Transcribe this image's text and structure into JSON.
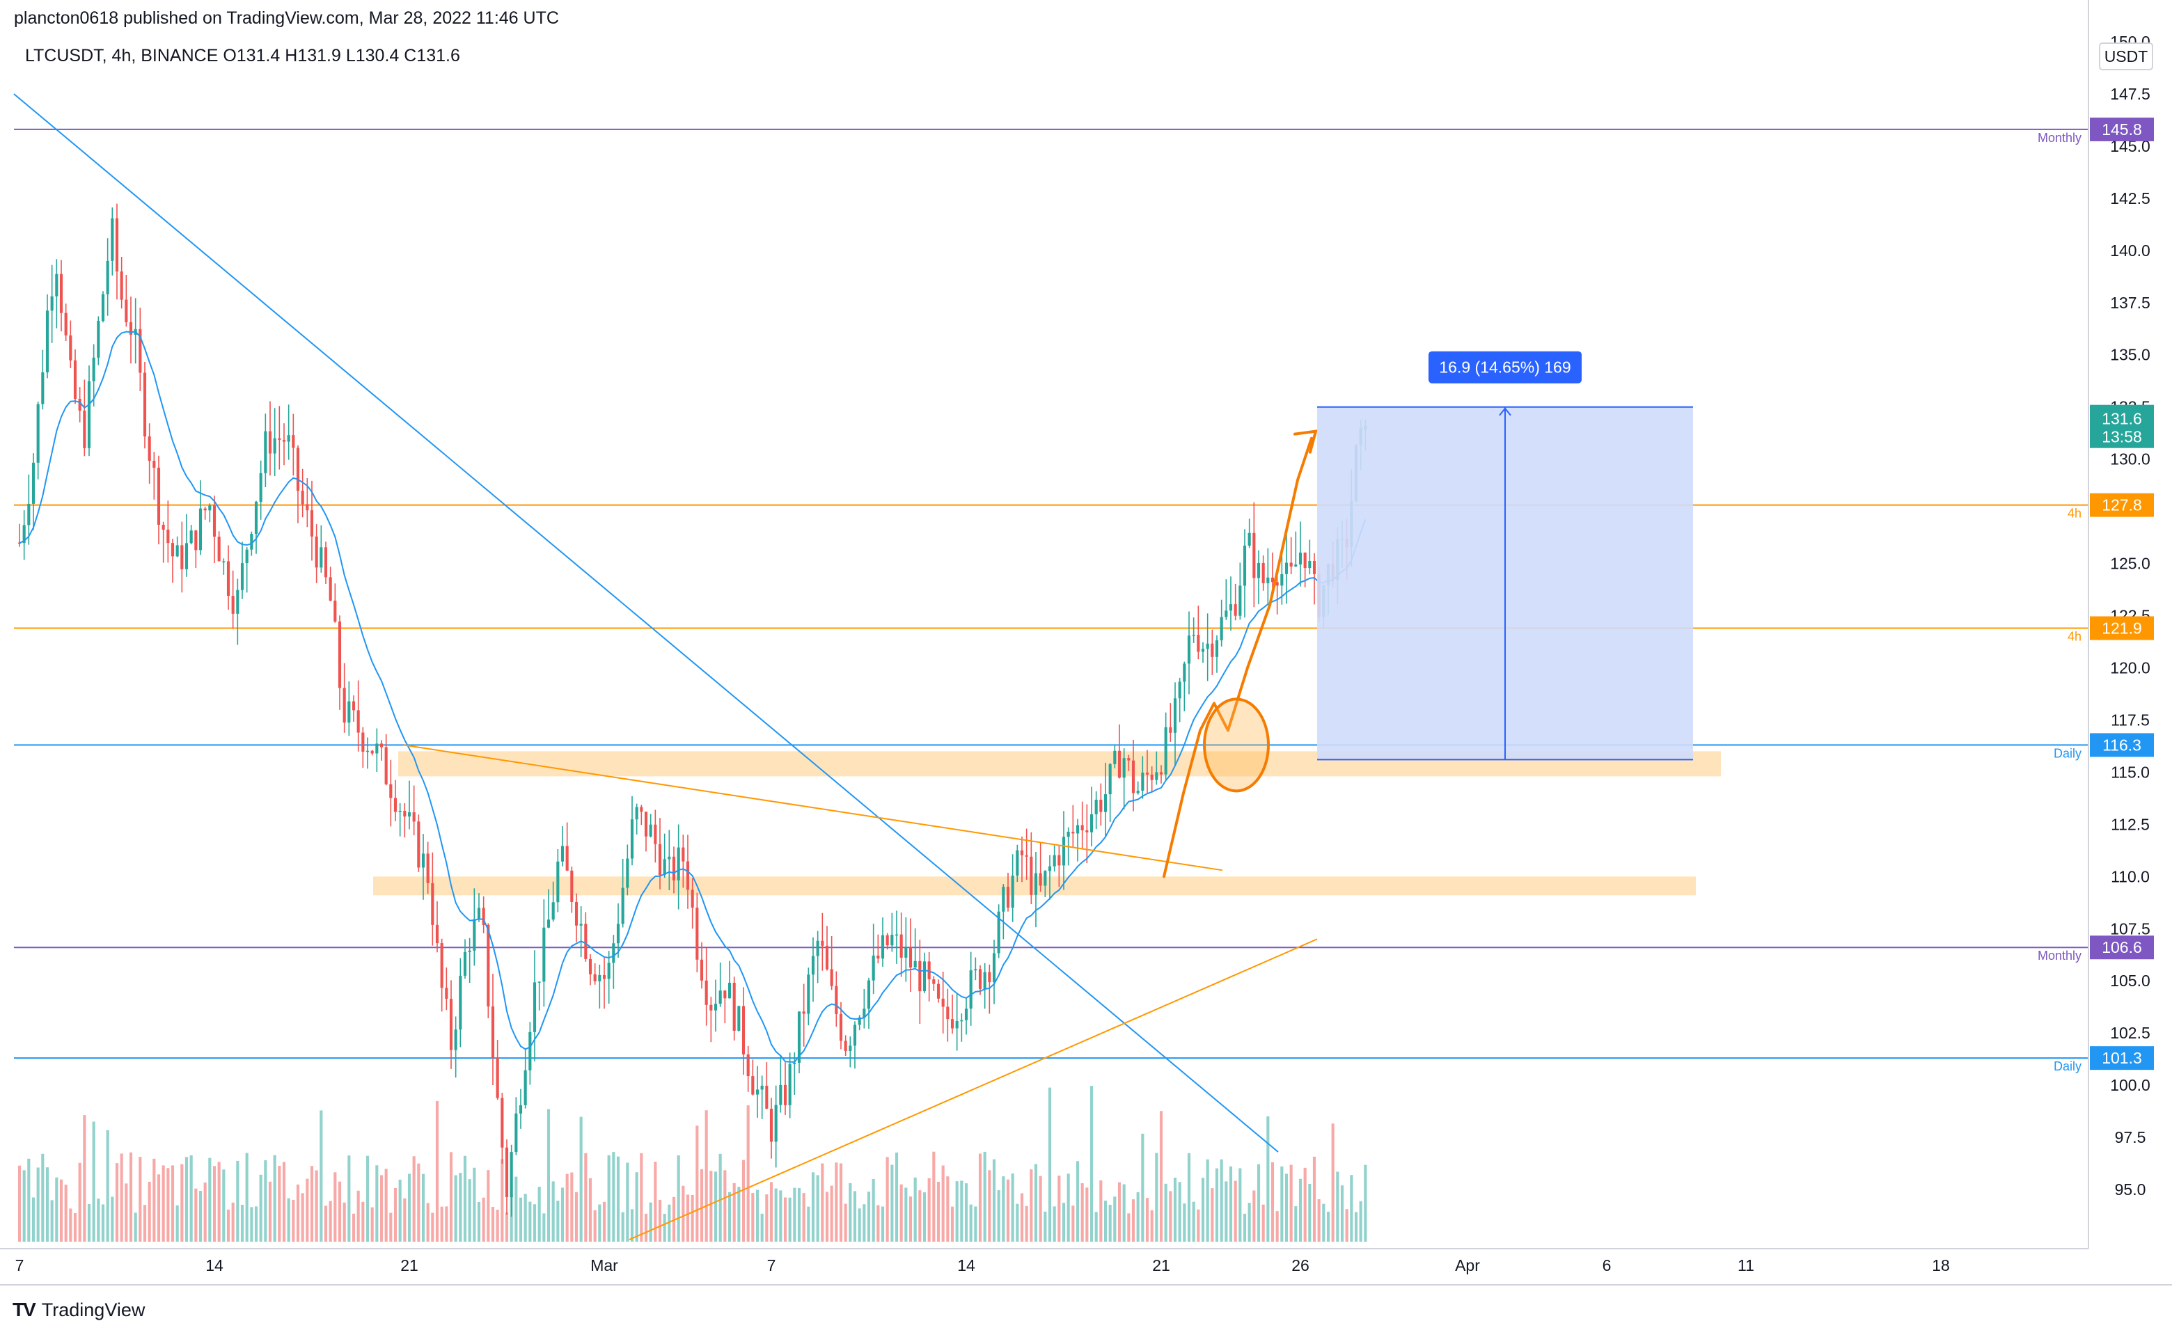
{
  "header": {
    "publish_line": "plancton0618 published on TradingView.com, Mar 28, 2022 11:46 UTC",
    "symbol_line": "LTCUSDT, 4h, BINANCE  O131.4  H131.9  L130.4  C131.6"
  },
  "footer": {
    "brand": "TradingView",
    "logo": "TV"
  },
  "colors": {
    "up": "#26a69a",
    "down": "#ef5350",
    "ma": "#2196f3",
    "monthly": "#7e57c2",
    "h4": "#ff9800",
    "daily": "#2196f3",
    "zone": "#ffe0b2",
    "measure_fill": "#cfdcfb",
    "measure_line": "#2962ff",
    "last": "#26a69a"
  },
  "chart_data": {
    "type": "candlestick",
    "symbol": "LTCUSDT",
    "timeframe": "4h",
    "exchange": "BINANCE",
    "last": {
      "open": 131.4,
      "high": 131.9,
      "low": 130.4,
      "close": 131.6
    },
    "currency_label": "USDT",
    "ylim": [
      92.5,
      150.0
    ],
    "y_ticks": [
      "150.0",
      "147.5",
      "145.0",
      "142.5",
      "140.0",
      "137.5",
      "135.0",
      "132.5",
      "130.0",
      "127.5",
      "125.0",
      "122.5",
      "120.0",
      "117.5",
      "115.0",
      "112.5",
      "110.0",
      "107.5",
      "105.0",
      "102.5",
      "100.0",
      "97.5",
      "95.0"
    ],
    "x_ticks": [
      {
        "label": "7",
        "day": 0
      },
      {
        "label": "14",
        "day": 7
      },
      {
        "label": "21",
        "day": 14
      },
      {
        "label": "Mar",
        "day": 21
      },
      {
        "label": "7",
        "day": 27
      },
      {
        "label": "14",
        "day": 34
      },
      {
        "label": "21",
        "day": 41
      },
      {
        "label": "26",
        "day": 46
      },
      {
        "label": "Apr",
        "day": 52
      },
      {
        "label": "6",
        "day": 57
      },
      {
        "label": "11",
        "day": 62
      },
      {
        "label": "18",
        "day": 69
      }
    ],
    "x_range_days": [
      -0.2,
      74.3
    ],
    "price_path": [
      [
        0,
        126
      ],
      [
        0.5,
        130
      ],
      [
        1,
        137
      ],
      [
        1.3,
        140
      ],
      [
        1.8,
        134
      ],
      [
        2.3,
        131
      ],
      [
        2.8,
        136
      ],
      [
        3.3,
        141
      ],
      [
        3.6,
        138
      ],
      [
        4.1,
        136
      ],
      [
        4.6,
        131
      ],
      [
        5.1,
        127
      ],
      [
        5.6,
        125
      ],
      [
        6.2,
        126
      ],
      [
        6.8,
        128
      ],
      [
        7.3,
        125
      ],
      [
        7.8,
        123
      ],
      [
        8.3,
        127
      ],
      [
        8.9,
        131
      ],
      [
        9.6,
        131
      ],
      [
        10.1,
        128
      ],
      [
        10.6,
        126
      ],
      [
        11.2,
        123
      ],
      [
        11.6,
        118
      ],
      [
        12.2,
        117
      ],
      [
        12.8,
        116
      ],
      [
        13.5,
        114
      ],
      [
        14.1,
        112
      ],
      [
        14.7,
        110
      ],
      [
        15.1,
        105
      ],
      [
        15.5,
        102
      ],
      [
        16.1,
        107
      ],
      [
        16.6,
        108
      ],
      [
        17.1,
        100
      ],
      [
        17.5,
        95
      ],
      [
        17.9,
        99
      ],
      [
        18.4,
        104
      ],
      [
        18.9,
        107
      ],
      [
        19.4,
        111
      ],
      [
        19.9,
        109
      ],
      [
        20.5,
        106
      ],
      [
        21.1,
        105
      ],
      [
        21.6,
        109
      ],
      [
        22.1,
        113
      ],
      [
        22.7,
        112
      ],
      [
        23.3,
        110
      ],
      [
        23.9,
        111
      ],
      [
        24.3,
        107
      ],
      [
        24.8,
        104
      ],
      [
        25.3,
        105
      ],
      [
        25.8,
        103
      ],
      [
        26.4,
        100
      ],
      [
        27,
        98
      ],
      [
        27.6,
        100
      ],
      [
        28.2,
        104
      ],
      [
        28.7,
        107
      ],
      [
        29.2,
        104
      ],
      [
        29.7,
        102
      ],
      [
        30.2,
        104
      ],
      [
        30.8,
        106
      ],
      [
        31.3,
        107
      ],
      [
        31.9,
        106
      ],
      [
        32.5,
        105
      ],
      [
        33.2,
        103
      ],
      [
        33.8,
        104
      ],
      [
        34.3,
        105
      ],
      [
        34.9,
        106
      ],
      [
        35.4,
        109
      ],
      [
        36,
        111
      ],
      [
        36.6,
        109
      ],
      [
        37.2,
        111
      ],
      [
        37.8,
        112
      ],
      [
        38.4,
        113
      ],
      [
        39,
        114
      ],
      [
        39.6,
        116
      ],
      [
        40.1,
        114
      ],
      [
        40.6,
        115
      ],
      [
        41.1,
        116
      ],
      [
        41.6,
        118
      ],
      [
        42.1,
        122
      ],
      [
        42.6,
        121
      ],
      [
        43.1,
        122
      ],
      [
        43.6,
        123
      ],
      [
        44.1,
        126
      ],
      [
        44.6,
        124
      ],
      [
        45.1,
        125
      ],
      [
        45.6,
        124
      ],
      [
        46.1,
        126
      ],
      [
        46.6,
        123
      ],
      [
        47.1,
        125
      ],
      [
        47.6,
        125.5
      ],
      [
        48,
        130
      ],
      [
        48.4,
        131.6
      ]
    ],
    "volume_scale_max": 1.0,
    "horizontal_levels": [
      {
        "price": 145.8,
        "label": "Monthly",
        "badge": "145.8",
        "color": "#7e57c2"
      },
      {
        "price": 127.8,
        "label": "4h",
        "badge": "127.8",
        "color": "#ff9800"
      },
      {
        "price": 121.9,
        "label": "4h",
        "badge": "121.9",
        "color": "#ff9800"
      },
      {
        "price": 116.3,
        "label": "Daily",
        "badge": "116.3",
        "color": "#2196f3"
      },
      {
        "price": 106.6,
        "label": "Monthly",
        "badge": "106.6",
        "color": "#7e57c2"
      },
      {
        "price": 101.3,
        "label": "Daily",
        "badge": "101.3",
        "color": "#2196f3"
      }
    ],
    "zones": [
      {
        "day_start": 13.6,
        "day_end": 61.1,
        "price_top": 116.0,
        "price_bottom": 114.8
      },
      {
        "day_start": 12.7,
        "day_end": 60.2,
        "price_top": 110.0,
        "price_bottom": 109.1
      }
    ],
    "trendlines": [
      {
        "color": "#2196f3",
        "from": [
          -0.2,
          147.5
        ],
        "to": [
          45.2,
          96.8
        ]
      },
      {
        "color": "#ff9800",
        "from": [
          13.8,
          116.3
        ],
        "to": [
          43.2,
          110.3
        ]
      },
      {
        "color": "#ff9800",
        "from": [
          21.9,
          92.6
        ],
        "to": [
          46.6,
          107.0
        ]
      }
    ],
    "measure": {
      "label": "16.9 (14.65%) 169",
      "day_start": 46.6,
      "day_end": 60.1,
      "price_from": 115.6,
      "price_to": 132.5
    },
    "last_price_badge": {
      "price": "131.6",
      "timer": "13:58"
    }
  }
}
